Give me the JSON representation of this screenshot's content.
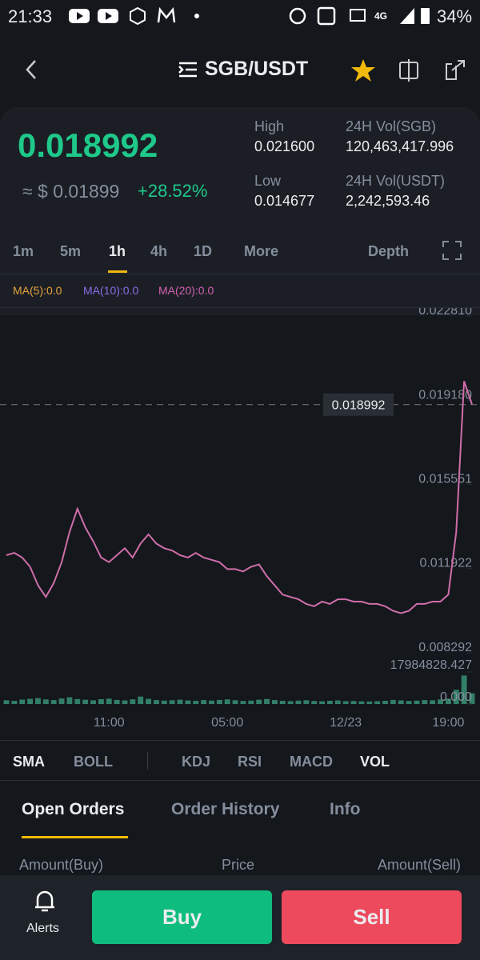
{
  "status_bar": {
    "time": "21:33",
    "battery": "34%"
  },
  "header": {
    "title": "SGB/USDT"
  },
  "ticker": {
    "price": "0.018992",
    "usd_price": "≈ $ 0.01899",
    "change": "+28.52%",
    "high_label": "High",
    "high": "0.021600",
    "low_label": "Low",
    "low": "0.014677",
    "vol_label": "24H Vol(SGB)",
    "vol": "120,463,417.996",
    "vol_usdt_label": "24H Vol(USDT)",
    "vol_usdt": "2,242,593.46"
  },
  "intervals": [
    "1m",
    "5m",
    "1h",
    "4h",
    "1D",
    "More"
  ],
  "depth": "Depth",
  "ma_legend": [
    {
      "label": "MA(5):0.0",
      "color": "#e8a23a"
    },
    {
      "label": "MA(10):0.0",
      "color": "#8d6be8"
    },
    {
      "label": "MA(20):0.0",
      "color": "#d660b4"
    }
  ],
  "chart_data": {
    "type": "line",
    "color": "#cf6ea9",
    "categories": [
      null,
      null,
      null,
      null,
      null,
      null,
      null,
      null,
      null,
      null,
      null,
      null,
      null,
      "11:00",
      null,
      null,
      null,
      null,
      null,
      null,
      null,
      null,
      null,
      null,
      null,
      null,
      null,
      null,
      "05:00",
      null,
      null,
      null,
      null,
      null,
      null,
      null,
      null,
      null,
      null,
      null,
      null,
      null,
      null,
      "12/23",
      null,
      null,
      null,
      null,
      null,
      null,
      null,
      null,
      null,
      null,
      null,
      null,
      "19:00",
      null,
      null,
      null
    ],
    "values": [
      0.0125,
      0.0126,
      0.0124,
      0.012,
      0.0112,
      0.0107,
      0.0113,
      0.0122,
      0.0135,
      0.0145,
      0.0137,
      0.0131,
      0.0124,
      0.0122,
      0.0125,
      0.0128,
      0.0124,
      0.013,
      0.0134,
      0.013,
      0.0128,
      0.0127,
      0.0125,
      0.0124,
      0.0126,
      0.0124,
      0.0123,
      0.0122,
      0.0119,
      0.0119,
      0.0118,
      0.012,
      0.0121,
      0.0116,
      0.0112,
      0.0108,
      0.0107,
      0.0106,
      0.0104,
      0.0103,
      0.0105,
      0.0104,
      0.0106,
      0.0106,
      0.0105,
      0.0105,
      0.0104,
      0.0104,
      0.0103,
      0.0101,
      0.01,
      0.0101,
      0.0104,
      0.0104,
      0.0105,
      0.0105,
      0.0108,
      0.0135,
      0.02,
      0.019
    ],
    "ylim": [
      0.008292,
      0.02281
    ],
    "yticks": [
      {
        "value": 0.02281,
        "label": "0.022810"
      },
      {
        "value": 0.01918,
        "label": "0.019180"
      },
      {
        "value": 0.015551,
        "label": "0.015551"
      },
      {
        "value": 0.011922,
        "label": "0.011922"
      },
      {
        "value": 0.008292,
        "label": "0.008292"
      }
    ],
    "last_price": 0.018992,
    "volume": {
      "color": "#3a9a7a",
      "values": [
        2100000,
        1800000,
        2500000,
        2900000,
        3300000,
        2600000,
        2200000,
        3100000,
        3800000,
        2800000,
        2400000,
        2100000,
        2700000,
        3000000,
        2300000,
        2000000,
        2600000,
        4200000,
        2900000,
        2200000,
        1900000,
        2100000,
        2400000,
        2000000,
        1800000,
        2200000,
        1900000,
        2300000,
        2600000,
        2100000,
        1700000,
        1900000,
        2400000,
        2800000,
        2200000,
        1800000,
        1600000,
        1900000,
        2100000,
        1700000,
        1500000,
        1800000,
        2000000,
        1600000,
        1700000,
        1500000,
        1400000,
        1600000,
        1800000,
        2300000,
        2000000,
        1700000,
        1900000,
        2200000,
        2100000,
        2600000,
        3000000,
        8000000,
        16000000,
        6000000
      ],
      "ylim": [
        0,
        17984828.427
      ],
      "yticks": [
        {
          "value": 0,
          "label": "0.000"
        },
        17984828.427
      ]
    }
  },
  "indicators": [
    "SMA",
    "BOLL",
    "KDJ",
    "RSI",
    "MACD",
    "VOL"
  ],
  "tabs": [
    "Open Orders",
    "Order History",
    "Info"
  ],
  "columns": [
    "Amount(Buy)",
    "Price",
    "Amount(Sell)"
  ],
  "footer": {
    "alerts": "Alerts",
    "buy": "Buy",
    "sell": "Sell"
  }
}
